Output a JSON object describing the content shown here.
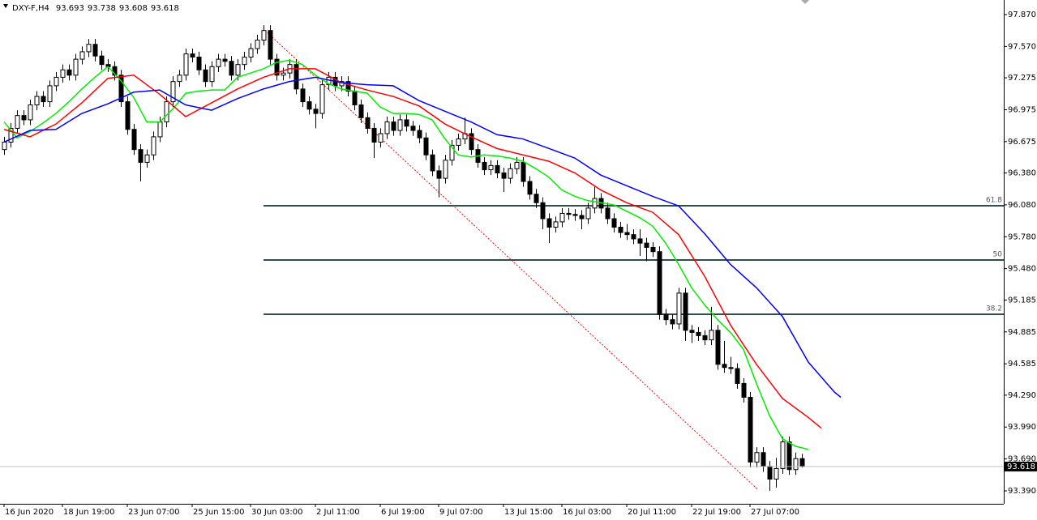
{
  "chart_data": {
    "type": "candlestick",
    "symbol": "DXY-F,H4",
    "categories": [
      "16 Jun 2020",
      null,
      null,
      null,
      null,
      null,
      null,
      null,
      null,
      "18 Jun 19:00",
      null,
      null,
      null,
      null,
      null,
      null,
      null,
      null,
      null,
      "23 Jun 07:00",
      null,
      null,
      null,
      null,
      null,
      null,
      null,
      null,
      null,
      "25 Jun 15:00",
      null,
      null,
      null,
      null,
      null,
      null,
      null,
      null,
      "30 Jun 03:00",
      null,
      null,
      null,
      null,
      null,
      null,
      null,
      null,
      null,
      "2 Jul 11:00",
      null,
      null,
      null,
      null,
      null,
      null,
      null,
      null,
      null,
      "6 Jul 19:00",
      null,
      null,
      null,
      null,
      null,
      null,
      null,
      null,
      "9 Jul 07:00",
      null,
      null,
      null,
      null,
      null,
      null,
      null,
      null,
      null,
      "13 Jul 15:00",
      null,
      null,
      null,
      null,
      null,
      null,
      null,
      null,
      "16 Jul 03:00",
      null,
      null,
      null,
      null,
      null,
      null,
      null,
      null,
      null,
      "20 Jul 11:00",
      null,
      null,
      null,
      null,
      null,
      null,
      null,
      null,
      null,
      "22 Jul 19:00",
      null,
      null,
      null,
      null,
      null,
      null,
      null,
      null,
      "27 Jul 07:00",
      null,
      null,
      null,
      null,
      null,
      null,
      null,
      null
    ],
    "ohlc": [
      [
        96.6,
        96.72,
        96.55,
        96.67
      ],
      [
        96.67,
        96.85,
        96.62,
        96.8
      ],
      [
        96.8,
        96.97,
        96.75,
        96.92
      ],
      [
        96.92,
        96.97,
        96.83,
        96.88
      ],
      [
        96.88,
        97.07,
        96.83,
        97.02
      ],
      [
        97.02,
        97.15,
        96.97,
        97.1
      ],
      [
        97.1,
        97.15,
        97.0,
        97.05
      ],
      [
        97.05,
        97.25,
        97.0,
        97.2
      ],
      [
        97.2,
        97.33,
        97.15,
        97.28
      ],
      [
        97.28,
        97.4,
        97.23,
        97.35
      ],
      [
        97.35,
        97.4,
        97.25,
        97.3
      ],
      [
        97.3,
        97.5,
        97.25,
        97.45
      ],
      [
        97.45,
        97.57,
        97.4,
        97.52
      ],
      [
        97.52,
        97.64,
        97.47,
        97.59
      ],
      [
        97.59,
        97.64,
        97.43,
        97.48
      ],
      [
        97.48,
        97.53,
        97.35,
        97.4
      ],
      [
        97.4,
        97.45,
        97.33,
        97.38
      ],
      [
        97.38,
        97.43,
        97.25,
        97.3
      ],
      [
        97.3,
        97.35,
        97.0,
        97.05
      ],
      [
        97.05,
        97.1,
        96.74,
        96.79
      ],
      [
        96.79,
        96.84,
        96.55,
        96.6
      ],
      [
        96.6,
        96.65,
        96.3,
        96.48
      ],
      [
        96.48,
        96.6,
        96.43,
        96.55
      ],
      [
        96.55,
        96.77,
        96.5,
        96.72
      ],
      [
        96.72,
        96.91,
        96.67,
        96.86
      ],
      [
        96.86,
        97.1,
        96.81,
        97.05
      ],
      [
        97.05,
        97.29,
        97.0,
        97.24
      ],
      [
        97.24,
        97.35,
        97.19,
        97.3
      ],
      [
        97.3,
        97.55,
        97.25,
        97.5
      ],
      [
        97.5,
        97.55,
        97.42,
        97.47
      ],
      [
        97.47,
        97.52,
        97.3,
        97.35
      ],
      [
        97.35,
        97.4,
        97.19,
        97.24
      ],
      [
        97.24,
        97.43,
        97.19,
        97.38
      ],
      [
        97.38,
        97.5,
        97.33,
        97.45
      ],
      [
        97.45,
        97.5,
        97.38,
        97.43
      ],
      [
        97.43,
        97.48,
        97.25,
        97.3
      ],
      [
        97.3,
        97.45,
        97.25,
        97.4
      ],
      [
        97.4,
        97.52,
        97.35,
        97.47
      ],
      [
        97.47,
        97.6,
        97.42,
        97.55
      ],
      [
        97.55,
        97.68,
        97.5,
        97.63
      ],
      [
        97.63,
        97.77,
        97.58,
        97.72
      ],
      [
        97.72,
        97.77,
        97.4,
        97.45
      ],
      [
        97.45,
        97.5,
        97.25,
        97.3
      ],
      [
        97.3,
        97.37,
        97.25,
        97.32
      ],
      [
        97.32,
        97.45,
        97.27,
        97.4
      ],
      [
        97.4,
        97.45,
        97.12,
        97.17
      ],
      [
        97.17,
        97.22,
        97.0,
        97.05
      ],
      [
        97.05,
        97.1,
        96.93,
        96.98
      ],
      [
        96.98,
        97.03,
        96.8,
        96.94
      ],
      [
        96.94,
        97.26,
        96.89,
        97.21
      ],
      [
        97.21,
        97.33,
        97.16,
        97.28
      ],
      [
        97.28,
        97.33,
        97.15,
        97.2
      ],
      [
        97.2,
        97.29,
        97.15,
        97.24
      ],
      [
        97.24,
        97.29,
        97.1,
        97.15
      ],
      [
        97.15,
        97.2,
        96.97,
        97.02
      ],
      [
        97.02,
        97.07,
        96.85,
        96.9
      ],
      [
        96.9,
        96.95,
        96.75,
        96.8
      ],
      [
        96.8,
        96.85,
        96.52,
        96.67
      ],
      [
        96.67,
        96.8,
        96.62,
        96.75
      ],
      [
        96.75,
        96.91,
        96.7,
        96.86
      ],
      [
        96.86,
        96.91,
        96.73,
        96.78
      ],
      [
        96.78,
        96.93,
        96.73,
        96.88
      ],
      [
        96.88,
        96.93,
        96.77,
        96.82
      ],
      [
        96.82,
        96.87,
        96.73,
        96.78
      ],
      [
        96.78,
        96.83,
        96.66,
        96.71
      ],
      [
        96.71,
        96.76,
        96.5,
        96.55
      ],
      [
        96.55,
        96.6,
        96.35,
        96.4
      ],
      [
        96.4,
        96.45,
        96.15,
        96.33
      ],
      [
        96.33,
        96.55,
        96.28,
        96.5
      ],
      [
        96.5,
        96.69,
        96.45,
        96.64
      ],
      [
        96.64,
        96.75,
        96.59,
        96.7
      ],
      [
        96.7,
        96.9,
        96.65,
        96.75
      ],
      [
        96.75,
        96.8,
        96.55,
        96.6
      ],
      [
        96.6,
        96.65,
        96.43,
        96.48
      ],
      [
        96.48,
        96.53,
        96.36,
        96.41
      ],
      [
        96.41,
        96.5,
        96.36,
        96.45
      ],
      [
        96.45,
        96.5,
        96.33,
        96.38
      ],
      [
        96.38,
        96.43,
        96.2,
        96.33
      ],
      [
        96.33,
        96.47,
        96.28,
        96.42
      ],
      [
        96.42,
        96.53,
        96.37,
        96.48
      ],
      [
        96.48,
        96.53,
        96.25,
        96.3
      ],
      [
        96.3,
        96.35,
        96.13,
        96.18
      ],
      [
        96.18,
        96.23,
        96.05,
        96.1
      ],
      [
        96.1,
        96.15,
        95.85,
        95.95
      ],
      [
        95.95,
        96.0,
        95.72,
        95.87
      ],
      [
        95.87,
        95.97,
        95.82,
        95.92
      ],
      [
        95.92,
        96.05,
        95.87,
        96.0
      ],
      [
        96.0,
        96.05,
        95.94,
        95.99
      ],
      [
        95.99,
        96.04,
        95.93,
        95.98
      ],
      [
        95.98,
        96.03,
        95.85,
        95.95
      ],
      [
        95.95,
        96.1,
        95.9,
        96.05
      ],
      [
        96.05,
        96.25,
        96.0,
        96.14
      ],
      [
        96.14,
        96.19,
        96.0,
        96.05
      ],
      [
        96.05,
        96.1,
        95.9,
        95.95
      ],
      [
        95.95,
        96.0,
        95.82,
        95.87
      ],
      [
        95.87,
        95.92,
        95.77,
        95.82
      ],
      [
        95.82,
        95.9,
        95.75,
        95.8
      ],
      [
        95.8,
        95.85,
        95.71,
        95.76
      ],
      [
        95.76,
        95.85,
        95.6,
        95.72
      ],
      [
        95.72,
        95.77,
        95.55,
        95.68
      ],
      [
        95.68,
        95.73,
        95.59,
        95.64
      ],
      [
        95.64,
        95.69,
        95.0,
        95.05
      ],
      [
        95.05,
        95.1,
        94.95,
        95.0
      ],
      [
        95.0,
        95.05,
        94.91,
        94.96
      ],
      [
        94.96,
        95.3,
        94.91,
        95.25
      ],
      [
        95.25,
        95.3,
        94.8,
        94.9
      ],
      [
        94.9,
        94.95,
        94.78,
        94.88
      ],
      [
        94.88,
        94.93,
        94.8,
        94.85
      ],
      [
        94.85,
        94.9,
        94.76,
        94.81
      ],
      [
        94.81,
        95.12,
        94.76,
        94.9
      ],
      [
        94.9,
        94.95,
        94.53,
        94.58
      ],
      [
        94.58,
        94.8,
        94.5,
        94.55
      ],
      [
        94.55,
        94.65,
        94.49,
        94.54
      ],
      [
        94.54,
        94.59,
        94.35,
        94.4
      ],
      [
        94.4,
        94.45,
        94.22,
        94.27
      ],
      [
        94.27,
        94.32,
        93.61,
        93.66
      ],
      [
        93.66,
        93.8,
        93.61,
        93.75
      ],
      [
        93.75,
        93.8,
        93.57,
        93.62
      ],
      [
        93.62,
        93.67,
        93.39,
        93.5
      ],
      [
        93.5,
        93.7,
        93.42,
        93.6
      ],
      [
        93.6,
        93.9,
        93.55,
        93.85
      ],
      [
        93.85,
        93.9,
        93.54,
        93.59
      ],
      [
        93.59,
        93.75,
        93.54,
        93.693
      ],
      [
        93.693,
        93.738,
        93.608,
        93.618
      ]
    ],
    "ylim": [
      93.268,
      98.007
    ],
    "yticks": [
      {
        "value": 97.87,
        "label": "97.870"
      },
      {
        "value": 97.57,
        "label": "97.570"
      },
      97.275,
      96.975,
      96.675,
      {
        "value": 96.38,
        "label": "96.380"
      },
      {
        "value": 96.08,
        "label": "96.080"
      },
      {
        "value": 95.78,
        "label": "95.780"
      },
      {
        "value": 95.48,
        "label": "95.480"
      },
      95.185,
      94.885,
      94.585,
      {
        "value": 94.29,
        "label": "94.290"
      },
      {
        "value": 93.99,
        "label": "93.990"
      },
      {
        "value": 93.69,
        "label": "93.690"
      },
      {
        "value": 93.39,
        "label": "93.390"
      }
    ],
    "series": [
      {
        "color": "#00ee00",
        "x": [
          0,
          2,
          4,
          6,
          8,
          10,
          12,
          14,
          16,
          18,
          20,
          22,
          24,
          26,
          28,
          30,
          32,
          34,
          36,
          38,
          40,
          42,
          44,
          46,
          48,
          50,
          52,
          54,
          56,
          58,
          60,
          62,
          64,
          66,
          68,
          70,
          72,
          74,
          76,
          78,
          80,
          82,
          84,
          86,
          88,
          90,
          92,
          94,
          96,
          98,
          100,
          102,
          104,
          106,
          108,
          110,
          112,
          114,
          116,
          118,
          120,
          122,
          124
        ],
        "values": [
          96.86,
          96.71,
          96.77,
          96.85,
          96.94,
          97.05,
          97.17,
          97.28,
          97.38,
          97.25,
          97.09,
          96.86,
          96.86,
          96.98,
          97.13,
          97.15,
          97.16,
          97.16,
          97.28,
          97.32,
          97.36,
          97.42,
          97.44,
          97.4,
          97.3,
          97.22,
          97.17,
          97.15,
          97.13,
          97.0,
          96.94,
          96.94,
          96.93,
          96.88,
          96.7,
          96.55,
          96.53,
          96.55,
          96.54,
          96.52,
          96.49,
          96.42,
          96.34,
          96.22,
          96.16,
          96.12,
          96.1,
          96.08,
          96.02,
          95.96,
          95.88,
          95.72,
          95.52,
          95.3,
          95.14,
          95.0,
          94.88,
          94.72,
          94.4,
          94.1,
          93.88,
          93.81,
          93.78
        ]
      },
      {
        "color": "#ff0000",
        "x": [
          0,
          4,
          8,
          12,
          16,
          20,
          24,
          28,
          32,
          36,
          40,
          44,
          48,
          52,
          56,
          60,
          64,
          68,
          72,
          76,
          80,
          84,
          88,
          92,
          96,
          100,
          104,
          108,
          112,
          116,
          120,
          124,
          126
        ],
        "values": [
          96.79,
          96.72,
          96.84,
          97.04,
          97.27,
          97.3,
          97.12,
          96.91,
          97.04,
          97.17,
          97.28,
          97.36,
          97.36,
          97.23,
          97.16,
          97.1,
          97.01,
          96.84,
          96.72,
          96.61,
          96.55,
          96.49,
          96.38,
          96.22,
          96.1,
          96.01,
          95.8,
          95.41,
          94.95,
          94.58,
          94.26,
          94.08,
          93.98
        ]
      },
      {
        "color": "#0000ff",
        "x": [
          0,
          4,
          8,
          12,
          16,
          20,
          24,
          28,
          32,
          36,
          40,
          44,
          48,
          52,
          56,
          60,
          64,
          68,
          72,
          76,
          80,
          84,
          88,
          92,
          96,
          100,
          104,
          108,
          112,
          116,
          120,
          124,
          128,
          129
        ],
        "values": [
          96.67,
          96.78,
          96.79,
          96.94,
          97.03,
          97.14,
          97.16,
          97.02,
          96.97,
          97.08,
          97.17,
          97.24,
          97.28,
          97.23,
          97.21,
          97.2,
          97.06,
          96.96,
          96.86,
          96.74,
          96.7,
          96.61,
          96.52,
          96.36,
          96.26,
          96.16,
          96.07,
          95.81,
          95.52,
          95.3,
          95.03,
          94.6,
          94.32,
          94.27
        ]
      }
    ],
    "levels": [
      {
        "label": "61.8",
        "value": 96.072
      },
      {
        "label": "50",
        "value": 95.561
      },
      {
        "label": "38.2",
        "value": 95.051
      }
    ],
    "levels_start": 40,
    "level_color": "#2f4f4f",
    "trendline": {
      "color": "#ff0000",
      "x": [
        40.6,
        116.25
      ],
      "values": [
        97.7,
        93.4
      ]
    }
  }
}
